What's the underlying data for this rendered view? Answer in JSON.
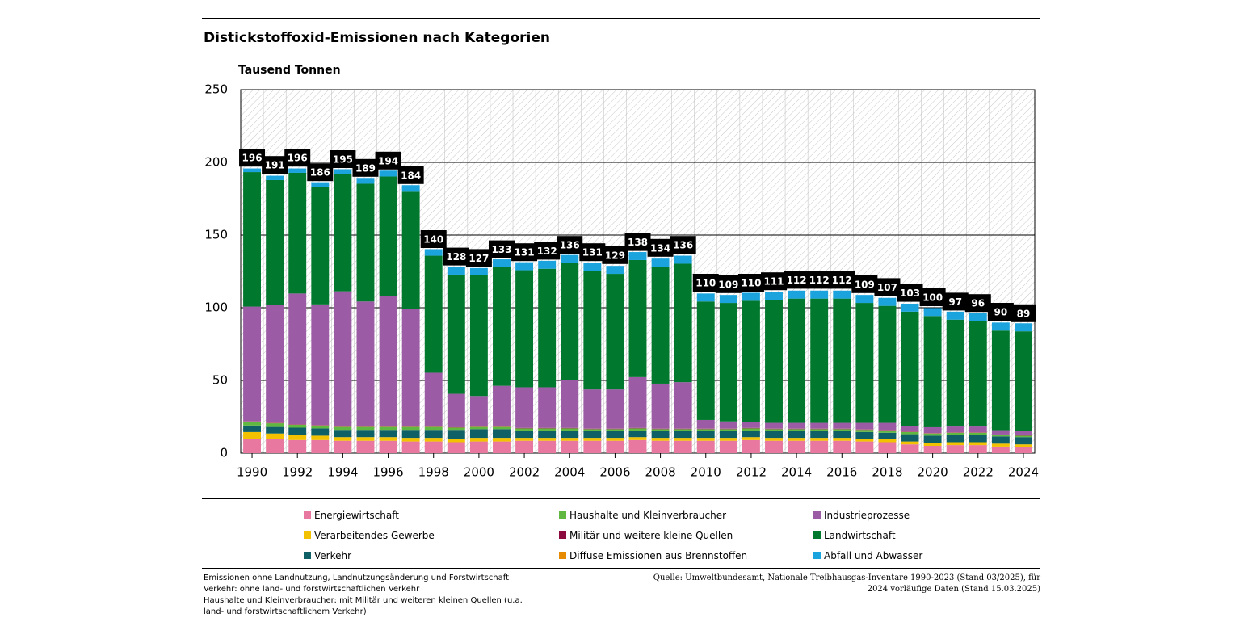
{
  "chart_data": {
    "type": "stacked-bar",
    "title": "Distickstoffoxid-Emissionen nach Kategorien",
    "y_label": "Tausend Tonnen",
    "categories": [
      "1990",
      null,
      "1992",
      null,
      "1994",
      null,
      "1996",
      null,
      "1998",
      null,
      "2000",
      null,
      "2002",
      null,
      "2004",
      null,
      "2006",
      null,
      "2008",
      null,
      "2010",
      null,
      "2012",
      null,
      "2014",
      null,
      "2016",
      null,
      "2018",
      null,
      "2020",
      null,
      "2022",
      null,
      "2024"
    ],
    "ylim": [
      0,
      250
    ],
    "yticks": [
      0,
      50,
      100,
      150,
      200,
      250
    ],
    "grid": true,
    "series": [
      {
        "name": "Energiewirtschaft",
        "color": "#e8789f",
        "values": [
          10,
          9.5,
          9,
          9,
          8.5,
          8.5,
          8.5,
          8,
          8,
          7.5,
          8,
          8,
          8.5,
          8.5,
          8.5,
          8.5,
          8.5,
          9,
          8.5,
          8.5,
          8.5,
          8.5,
          9,
          8.5,
          8.5,
          8.5,
          8.5,
          8,
          7.5,
          6,
          5,
          5.5,
          5.5,
          4.5,
          4
        ]
      },
      {
        "name": "Verarbeitendes Gewerbe",
        "color": "#f2c100",
        "values": [
          4.5,
          4,
          3.5,
          3,
          2.5,
          2.5,
          2.5,
          2.5,
          2.5,
          2.5,
          2.5,
          2.5,
          2,
          2,
          2,
          2,
          2,
          2,
          2,
          2,
          2,
          2,
          2,
          2,
          2,
          2,
          2,
          2,
          2,
          2,
          2,
          2,
          2,
          2,
          2
        ]
      },
      {
        "name": "Verkehr",
        "color": "#0f5f66",
        "values": [
          4.5,
          4.5,
          5,
          5,
          5,
          5,
          5,
          5.5,
          5.5,
          6,
          6,
          6,
          5,
          5,
          5,
          4.5,
          4.5,
          4.5,
          4.5,
          4.5,
          4.5,
          4.5,
          4.5,
          4.5,
          4.5,
          4.5,
          4.5,
          4.5,
          4.5,
          5,
          5,
          5,
          5,
          5,
          5
        ]
      },
      {
        "name": "Haushalte und Kleinverbraucher",
        "color": "#61b840",
        "values": [
          2.5,
          2.5,
          2,
          2,
          2,
          2,
          2,
          2,
          2,
          1.5,
          1.5,
          1.5,
          1.5,
          1.5,
          1.5,
          1.5,
          1.5,
          1.5,
          1.5,
          1.5,
          1.5,
          1.5,
          1.5,
          1.5,
          1.5,
          1.5,
          1.5,
          1.5,
          1.5,
          1.5,
          1.5,
          1.5,
          1.5,
          1,
          1
        ]
      },
      {
        "name": "Militär und weitere kleine Quellen",
        "color": "#8c0b3e",
        "values": [
          0.2,
          0.2,
          0.2,
          0.2,
          0.2,
          0.2,
          0.2,
          0.2,
          0.2,
          0.2,
          0.2,
          0.2,
          0.2,
          0.2,
          0.2,
          0.2,
          0.2,
          0.2,
          0.2,
          0.2,
          0.2,
          0.2,
          0.2,
          0.2,
          0.2,
          0.2,
          0.2,
          0.2,
          0.2,
          0.2,
          0.2,
          0.2,
          0.2,
          0.2,
          0.2
        ]
      },
      {
        "name": "Diffuse Emissionen aus Brennstoffen",
        "color": "#e68a00",
        "values": [
          0.1,
          0.1,
          0.1,
          0.1,
          0.1,
          0.1,
          0.1,
          0.1,
          0.1,
          0.1,
          0.1,
          0.1,
          0.1,
          0.1,
          0.1,
          0.1,
          0.1,
          0.1,
          0.1,
          0.1,
          0.1,
          0.1,
          0.1,
          0.1,
          0.1,
          0.1,
          0.1,
          0.1,
          0.1,
          0.1,
          0.1,
          0.1,
          0.1,
          0.1,
          0.1
        ]
      },
      {
        "name": "Industrieprozesse",
        "color": "#9b5ba5",
        "values": [
          79,
          81,
          90,
          83,
          93,
          86,
          90,
          81,
          37,
          23,
          21,
          28,
          28,
          28,
          33,
          27,
          27,
          35,
          31,
          32,
          6,
          5,
          4,
          4,
          4,
          4,
          4,
          4.5,
          5,
          4,
          4,
          4,
          4,
          3,
          3
        ]
      },
      {
        "name": "Landwirtschaft",
        "color": "#00782d",
        "values": [
          92.5,
          86,
          83,
          80.5,
          80.5,
          81,
          82,
          80.5,
          80.5,
          82,
          83,
          81.5,
          80.5,
          81.5,
          80.5,
          81.5,
          79.5,
          80.5,
          80.5,
          81.5,
          81.5,
          81.5,
          83.5,
          84.5,
          85.5,
          85.5,
          85.5,
          82.5,
          80.5,
          78.5,
          76.5,
          73.5,
          72.5,
          68.5,
          68.5
        ]
      },
      {
        "name": "Abfall und Abwasser",
        "color": "#1aa3dc",
        "values": [
          2.5,
          3,
          3,
          3.5,
          3.5,
          4,
          4,
          4.5,
          4.5,
          5,
          5,
          5.5,
          5.5,
          5.5,
          5.5,
          5.5,
          5.5,
          5.5,
          5.5,
          5.5,
          5.5,
          5.5,
          5.5,
          5.5,
          5.5,
          5.5,
          5.5,
          5.5,
          5.5,
          5.5,
          5.5,
          5.5,
          5.5,
          5.5,
          5.5
        ]
      }
    ],
    "totals": [
      196,
      191,
      196,
      186,
      195,
      189,
      194,
      184,
      140,
      128,
      127,
      133,
      131,
      132,
      136,
      131,
      129,
      138,
      134,
      136,
      110,
      109,
      110,
      111,
      112,
      112,
      112,
      109,
      107,
      103,
      100,
      97,
      96,
      90,
      89
    ],
    "notes": [
      "Emissionen ohne Landnutzung, Landnutzungsänderung und Forstwirtschaft",
      "Verkehr: ohne land- und forstwirtschaftlichen Verkehr",
      "Haushalte und Kleinverbraucher: mit Militär und weiteren kleinen Quellen (u.a. land- und forstwirtschaftlichem Verkehr)"
    ],
    "source": "Quelle: Umweltbundesamt, Nationale Treibhausgas-Inventare 1990-2023 (Stand 03/2025), für 2024 vorläufige Daten (Stand 15.03.2025)"
  }
}
